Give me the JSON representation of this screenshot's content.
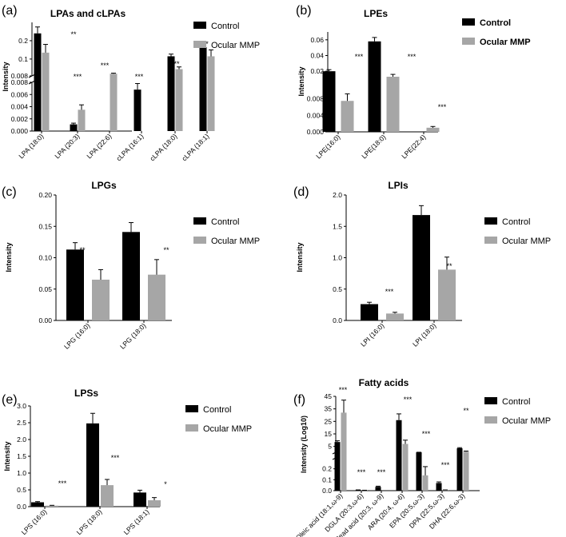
{
  "colors": {
    "control": "#000000",
    "ocular": "#a6a6a6",
    "axis": "#000000"
  },
  "chart_data": [
    {
      "panel_label": "(a)",
      "type": "bar",
      "title": "LPAs and cLPAs",
      "ylabel": "Intensity",
      "broken_axis": true,
      "upper_ylim": [
        0.008,
        0.3
      ],
      "upper_ticks": [
        "0.2",
        "0.1",
        "0.008"
      ],
      "lower_ylim": [
        0,
        0.008
      ],
      "lower_ticks": [
        "0.008",
        "0.006",
        "0.004",
        "0.002",
        "0.000"
      ],
      "categories": [
        "LPA (18:0)",
        "LPA (20:3)",
        "LPA (22:6)",
        "cLPA (16:1)",
        "cLPA (18:0)",
        "cLPA (18:1)"
      ],
      "series": [
        {
          "name": "Control",
          "values": [
            0.24,
            0.0011,
            0,
            0.0068,
            0.115,
            0.165
          ],
          "errors": [
            0.035,
            0.0002,
            0,
            0.001,
            0.012,
            0.015
          ]
        },
        {
          "name": "Ocular MMP",
          "values": [
            0.135,
            0.0035,
            0.02,
            0,
            0.045,
            0.115
          ],
          "errors": [
            0.045,
            0.0008,
            0.003,
            0,
            0.012,
            0.035
          ]
        }
      ],
      "significance": [
        "**",
        "***",
        "***",
        "***",
        "**",
        "*"
      ],
      "legend": "top-right"
    },
    {
      "panel_label": "(b)",
      "type": "bar",
      "title": "LPEs",
      "ylabel": "Intensity",
      "broken_axis": true,
      "upper_ylim": [
        0.012,
        0.07
      ],
      "upper_ticks": [
        "0.06",
        "0.04",
        "0.02"
      ],
      "lower_ylim": [
        0,
        0.012
      ],
      "lower_ticks": [
        "0.008",
        "0.004",
        "0.000"
      ],
      "categories": [
        "LPE(16:0)",
        "LPE(18:0)",
        "LPE(22:4)"
      ],
      "series": [
        {
          "name": "Control",
          "values": [
            0.02,
            0.058,
            0
          ],
          "errors": [
            0.002,
            0.005,
            0
          ]
        },
        {
          "name": "Ocular MMP",
          "values": [
            0.0075,
            0.013,
            0.001
          ],
          "errors": [
            0.0017,
            0.003,
            0.0003
          ]
        }
      ],
      "significance": [
        "***",
        "***",
        "***"
      ],
      "legend": "top-right"
    },
    {
      "panel_label": "(c)",
      "type": "bar",
      "title": "LPGs",
      "ylabel": "Intensity",
      "ylim": [
        0,
        0.2
      ],
      "ticks": [
        "0.00",
        "0.05",
        "0.10",
        "0.15",
        "0.20"
      ],
      "categories": [
        "LPG (16:0)",
        "LPG (18:0)"
      ],
      "series": [
        {
          "name": "Control",
          "values": [
            0.113,
            0.141
          ],
          "errors": [
            0.011,
            0.015
          ]
        },
        {
          "name": "Ocular MMP",
          "values": [
            0.065,
            0.073
          ],
          "errors": [
            0.016,
            0.024
          ]
        }
      ],
      "significance": [
        "**",
        "**"
      ],
      "legend": "top-right"
    },
    {
      "panel_label": "(d)",
      "type": "bar",
      "title": "LPIs",
      "ylabel": "Intensity",
      "ylim": [
        0,
        2.0
      ],
      "ticks": [
        "0.0",
        "0.5",
        "1.0",
        "1.5",
        "2.0"
      ],
      "categories": [
        "LPI (16:0)",
        "LPI (18:0)"
      ],
      "series": [
        {
          "name": "Control",
          "values": [
            0.26,
            1.68
          ],
          "errors": [
            0.03,
            0.15
          ]
        },
        {
          "name": "Ocular MMP",
          "values": [
            0.11,
            0.81
          ],
          "errors": [
            0.02,
            0.2
          ]
        }
      ],
      "significance": [
        "***",
        "**"
      ],
      "legend": "top-right"
    },
    {
      "panel_label": "(e)",
      "type": "bar",
      "title": "LPSs",
      "ylabel": "Intensity",
      "ylim": [
        0,
        3.0
      ],
      "ticks": [
        "0.0",
        "0.5",
        "1.0",
        "1.5",
        "2.0",
        "2.5",
        "3.0"
      ],
      "categories": [
        "LPS (16:0)",
        "LPS (18:0)",
        "LPS (18:1)"
      ],
      "series": [
        {
          "name": "Control",
          "values": [
            0.13,
            2.48,
            0.42
          ],
          "errors": [
            0.02,
            0.3,
            0.07
          ]
        },
        {
          "name": "Ocular MMP",
          "values": [
            0.03,
            0.64,
            0.19
          ],
          "errors": [
            0.01,
            0.17,
            0.08
          ]
        }
      ],
      "significance": [
        "***",
        "***",
        "*"
      ],
      "legend": "top-right"
    },
    {
      "panel_label": "(f)",
      "type": "bar",
      "title": "Fatty acids",
      "ylabel": "Intensity (Log10)",
      "broken_axis": true,
      "upper_ylim": [
        0.3,
        45
      ],
      "upper_ticks": [
        "45",
        "35",
        "25",
        "15",
        "5"
      ],
      "lower_ylim": [
        0,
        0.3
      ],
      "lower_ticks": [
        "0.2",
        "0.1",
        "0.0"
      ],
      "categories": [
        "Oleic acid (18:1,ω-9)",
        "DGLA (20:3,ω-6)",
        "Mead acid (20:3, ω-9)",
        "ARA (20:4, ω-6)",
        "EPA (20:5,ω-3)",
        "DPA (22:5,ω-3)",
        "DHA (22:6,ω-3)"
      ],
      "series": [
        {
          "name": "Control",
          "values": [
            8.5,
            0.005,
            0.035,
            26,
            0.32,
            0.07,
            3.5
          ],
          "errors": [
            1.0,
            0.002,
            0.006,
            5,
            0.02,
            0.01,
            0.5
          ]
        },
        {
          "name": "Ocular MMP",
          "values": [
            32,
            0.003,
            0.002,
            7,
            0.14,
            0.005,
            0.8
          ],
          "errors": [
            10,
            0.001,
            0.001,
            3,
            0.08,
            0.002,
            0.5
          ]
        }
      ],
      "significance": [
        "***",
        "***",
        "***",
        "***",
        "***",
        "***",
        "**"
      ],
      "legend": "top-right"
    }
  ]
}
